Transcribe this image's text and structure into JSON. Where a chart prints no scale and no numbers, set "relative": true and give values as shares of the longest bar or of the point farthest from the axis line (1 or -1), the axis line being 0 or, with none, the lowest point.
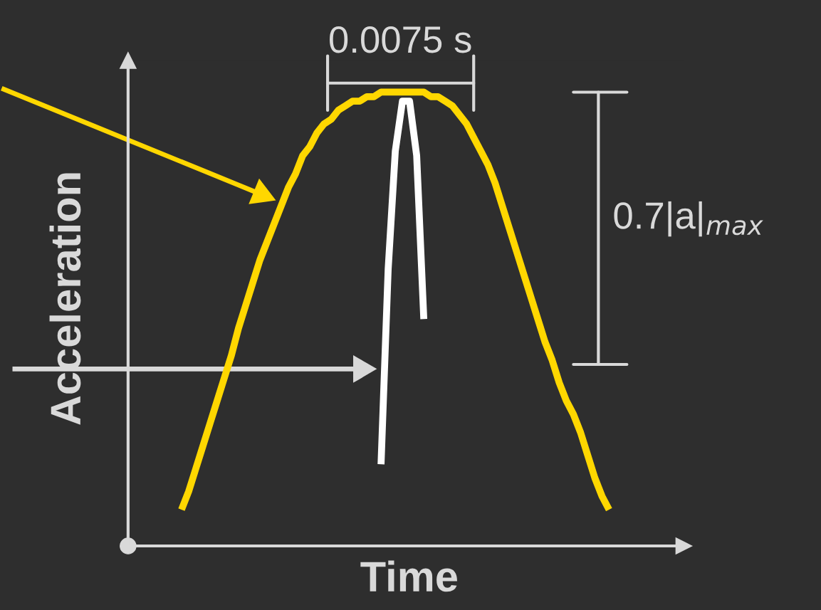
{
  "chart_data": {
    "type": "line",
    "relative": true,
    "xlabel": "Time",
    "ylabel": "Acceleration",
    "annotations": [
      "0.0075 s",
      "0.7|a|$_{max}$"
    ],
    "categories": [
      null,
      null,
      null,
      null,
      null,
      null,
      null,
      null,
      null,
      null,
      null,
      null,
      null,
      null,
      null,
      null,
      null,
      null,
      null,
      null,
      null,
      null,
      null,
      null,
      null,
      null,
      null,
      null,
      null,
      null,
      null,
      null,
      null,
      null,
      null,
      null,
      null,
      null,
      null,
      null,
      null,
      null,
      null,
      null,
      null,
      null,
      null,
      null,
      null,
      null,
      null,
      null,
      null,
      null,
      null,
      null,
      null,
      null,
      null,
      null,
      null
    ],
    "series": [
      {
        "color": "#ffd700",
        "values": [
          0.08,
          0.12,
          0.17,
          0.22,
          0.27,
          0.32,
          0.37,
          0.42,
          0.48,
          0.53,
          0.58,
          0.63,
          0.67,
          0.71,
          0.75,
          0.79,
          0.82,
          0.86,
          0.88,
          0.91,
          0.93,
          0.94,
          0.96,
          0.97,
          0.98,
          0.98,
          0.99,
          0.99,
          1.0,
          1.0,
          1.0,
          1.0,
          1.0,
          1.0,
          1.0,
          0.99,
          0.99,
          0.98,
          0.97,
          0.95,
          0.93,
          0.9,
          0.87,
          0.84,
          0.8,
          0.75,
          0.7,
          0.65,
          0.6,
          0.55,
          0.5,
          0.45,
          0.41,
          0.36,
          0.32,
          0.29,
          0.25,
          0.2,
          0.15,
          0.11,
          0.08
        ]
      },
      {
        "color": "#ffffff",
        "values": [
          null,
          null,
          null,
          null,
          null,
          null,
          null,
          null,
          null,
          null,
          null,
          null,
          null,
          null,
          null,
          null,
          null,
          null,
          null,
          null,
          null,
          null,
          null,
          null,
          null,
          null,
          null,
          null,
          0.18,
          0.61,
          0.87,
          0.98,
          0.98,
          0.86,
          0.5,
          null,
          null,
          null,
          null,
          null,
          null,
          null,
          null,
          null,
          null,
          null,
          null,
          null,
          null,
          null,
          null,
          null,
          null,
          null,
          null,
          null,
          null,
          null,
          null,
          null,
          null
        ]
      }
    ]
  }
}
